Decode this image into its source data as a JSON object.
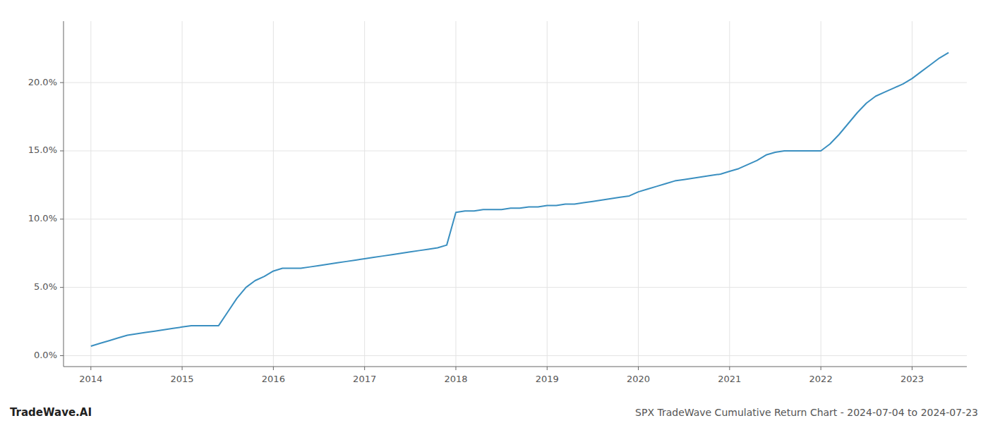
{
  "chart_data": {
    "type": "line",
    "title": "SPX TradeWave Cumulative Return Chart - 2024-07-04 to 2024-07-23",
    "annotations": [
      "TradeWave.AI"
    ],
    "color": "#3a8fc0",
    "grid": true,
    "x": [
      2014.0,
      2014.1,
      2014.2,
      2014.3,
      2014.4,
      2014.5,
      2014.6,
      2014.7,
      2014.8,
      2014.9,
      2015.0,
      2015.1,
      2015.2,
      2015.3,
      2015.4,
      2015.5,
      2015.6,
      2015.7,
      2015.8,
      2015.9,
      2016.0,
      2016.1,
      2016.2,
      2016.3,
      2016.4,
      2016.5,
      2016.6,
      2016.7,
      2016.8,
      2016.9,
      2017.0,
      2017.1,
      2017.2,
      2017.3,
      2017.4,
      2017.5,
      2017.6,
      2017.7,
      2017.8,
      2017.9,
      2018.0,
      2018.1,
      2018.2,
      2018.3,
      2018.4,
      2018.5,
      2018.6,
      2018.7,
      2018.8,
      2018.9,
      2019.0,
      2019.1,
      2019.2,
      2019.3,
      2019.4,
      2019.5,
      2019.6,
      2019.7,
      2019.8,
      2019.9,
      2020.0,
      2020.1,
      2020.2,
      2020.3,
      2020.4,
      2020.5,
      2020.6,
      2020.7,
      2020.8,
      2020.9,
      2021.0,
      2021.1,
      2021.2,
      2021.3,
      2021.4,
      2021.5,
      2021.6,
      2021.7,
      2021.8,
      2021.9,
      2022.0,
      2022.1,
      2022.2,
      2022.3,
      2022.4,
      2022.5,
      2022.6,
      2022.7,
      2022.8,
      2022.9,
      2023.0,
      2023.1,
      2023.2,
      2023.3,
      2023.4
    ],
    "values": [
      0.007,
      0.009,
      0.011,
      0.013,
      0.015,
      0.016,
      0.017,
      0.018,
      0.019,
      0.02,
      0.021,
      0.022,
      0.022,
      0.022,
      0.022,
      0.032,
      0.042,
      0.05,
      0.055,
      0.058,
      0.062,
      0.064,
      0.064,
      0.064,
      0.065,
      0.066,
      0.067,
      0.068,
      0.069,
      0.07,
      0.071,
      0.072,
      0.073,
      0.074,
      0.075,
      0.076,
      0.077,
      0.078,
      0.079,
      0.081,
      0.105,
      0.106,
      0.106,
      0.107,
      0.107,
      0.107,
      0.108,
      0.108,
      0.109,
      0.109,
      0.11,
      0.11,
      0.111,
      0.111,
      0.112,
      0.113,
      0.114,
      0.115,
      0.116,
      0.117,
      0.12,
      0.122,
      0.124,
      0.126,
      0.128,
      0.129,
      0.13,
      0.131,
      0.132,
      0.133,
      0.135,
      0.137,
      0.14,
      0.143,
      0.147,
      0.149,
      0.15,
      0.15,
      0.15,
      0.15,
      0.15,
      0.155,
      0.162,
      0.17,
      0.178,
      0.185,
      0.19,
      0.193,
      0.196,
      0.199,
      0.203,
      0.208,
      0.213,
      0.218,
      0.222
    ],
    "xlim": [
      2013.7,
      2023.6
    ],
    "ylim": [
      -0.008,
      0.245
    ],
    "xticks": [
      2014,
      2015,
      2016,
      2017,
      2018,
      2019,
      2020,
      2021,
      2022,
      2023
    ],
    "yticks": [
      {
        "value": 0.0,
        "label": "0.0%"
      },
      {
        "value": 0.05,
        "label": "5.0%"
      },
      {
        "value": 0.1,
        "label": "10.0%"
      },
      {
        "value": 0.15,
        "label": "15.0%"
      },
      {
        "value": 0.2,
        "label": "20.0%"
      }
    ]
  }
}
